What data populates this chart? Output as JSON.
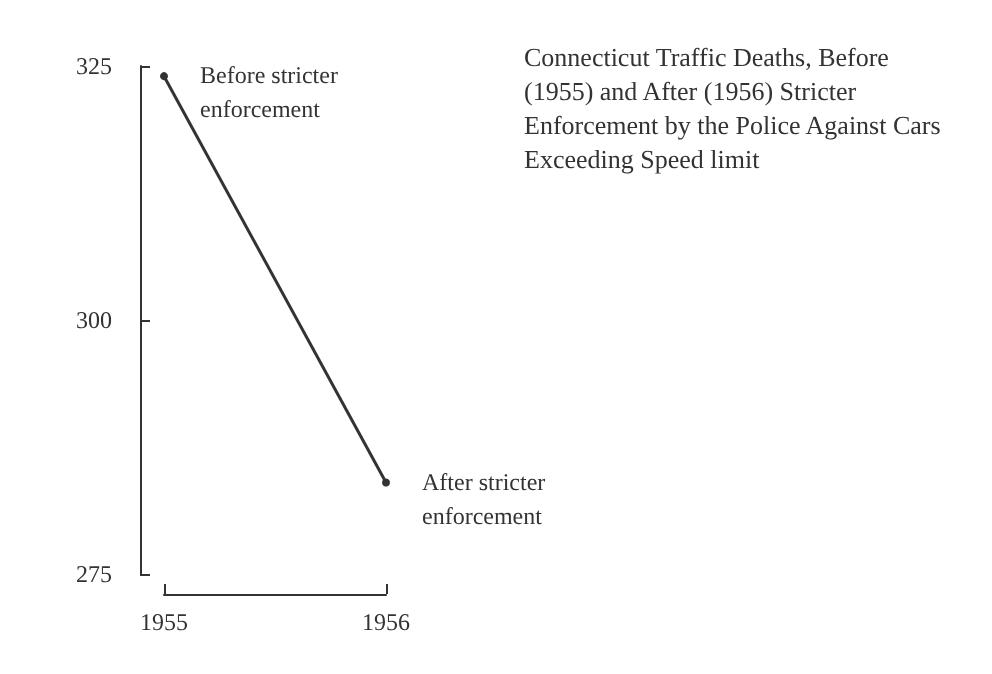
{
  "chart_data": {
    "type": "line",
    "title": "Connecticut Traffic Deaths, Before (1955) and After (1956) Stricter Enforcement by the Police Against Cars Exceeding Speed limit",
    "x": [
      1955,
      1956
    ],
    "series": [
      {
        "color": "#333333",
        "values": [
          324,
          284
        ]
      }
    ],
    "xlim": [
      1955,
      1956
    ],
    "xticks": [
      1955,
      1956
    ],
    "ylim": [
      275,
      325
    ],
    "yticks": [
      275,
      300,
      325
    ],
    "grid": false,
    "marker": "circle",
    "line_style": "solid",
    "annotations": [
      {
        "text": "Before stricter enforcement",
        "x": 1955,
        "y": 324
      },
      {
        "text": "After stricter enforcement",
        "x": 1956,
        "y": 284
      }
    ]
  }
}
